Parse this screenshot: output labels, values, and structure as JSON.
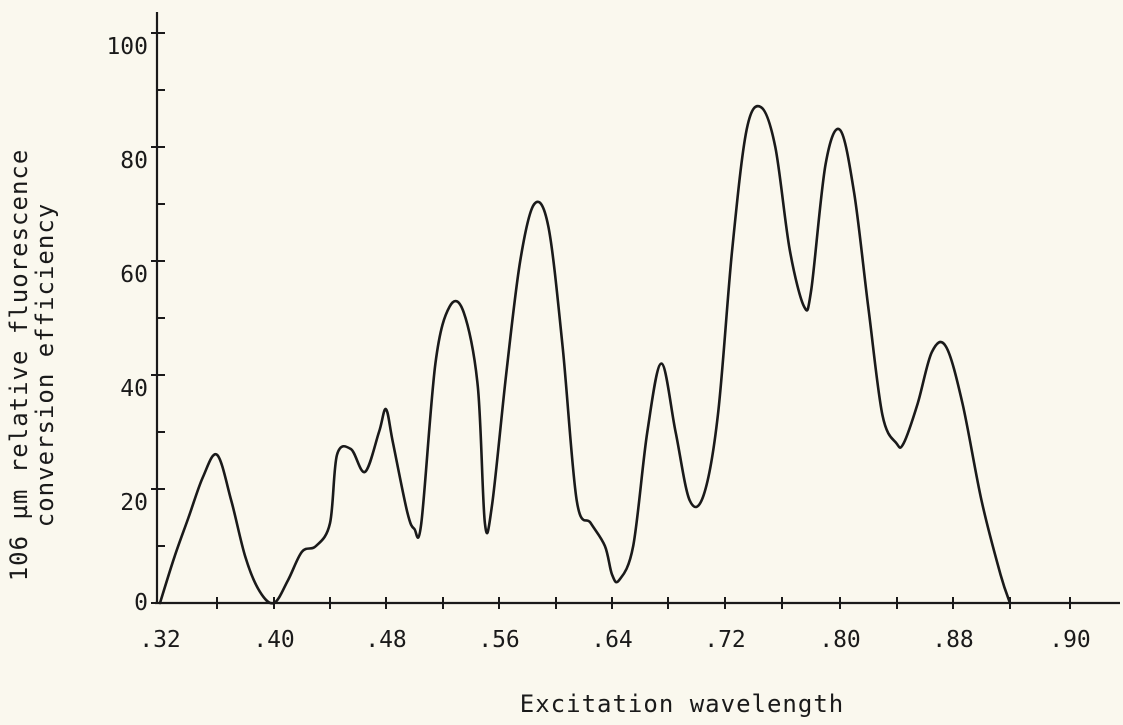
{
  "chart_data": {
    "type": "line",
    "title": "",
    "xlabel": "Excitation wavelength",
    "ylabel_line1": "106 µm relative fluorescence",
    "ylabel_line2": "conversion efficiency",
    "x_tick_labels": [
      ".32",
      ".40",
      ".48",
      ".56",
      ".64",
      ".72",
      ".80",
      ".88",
      ".90"
    ],
    "y_tick_labels": [
      "0",
      "20",
      "40",
      "60",
      "80",
      "100"
    ],
    "y_ticks": [
      0,
      20,
      40,
      60,
      80,
      100
    ],
    "ylim": [
      0,
      100
    ],
    "grid": false,
    "line_color": "#1a1a1a",
    "series": [
      {
        "x": [
          0.32,
          0.33,
          0.34,
          0.35,
          0.36,
          0.37,
          0.38,
          0.39,
          0.4,
          0.41,
          0.42,
          0.43,
          0.44,
          0.445,
          0.455,
          0.465,
          0.475,
          0.48,
          0.485,
          0.495,
          0.5,
          0.505,
          0.515,
          0.525,
          0.535,
          0.545,
          0.55,
          0.555,
          0.565,
          0.575,
          0.585,
          0.595,
          0.605,
          0.615,
          0.625,
          0.635,
          0.64,
          0.645,
          0.655,
          0.665,
          0.675,
          0.685,
          0.695,
          0.705,
          0.715,
          0.725,
          0.735,
          0.745,
          0.755,
          0.765,
          0.775,
          0.78,
          0.79,
          0.8,
          0.81,
          0.82,
          0.83,
          0.84,
          0.845,
          0.855,
          0.865,
          0.875,
          0.885,
          0.895,
          0.905,
          0.91
        ],
        "y": [
          0,
          8,
          15,
          22,
          26,
          18,
          8,
          2,
          0,
          4,
          9,
          10,
          14,
          26,
          27,
          23,
          30,
          34,
          28,
          16,
          13,
          14,
          42,
          52,
          51,
          38,
          14,
          17,
          40,
          60,
          70,
          66,
          45,
          18,
          14,
          10,
          5,
          4,
          10,
          30,
          42,
          30,
          18,
          19,
          33,
          62,
          83,
          87,
          80,
          62,
          52,
          55,
          77,
          83,
          72,
          52,
          33,
          28,
          28,
          35,
          44,
          45,
          35,
          18,
          5,
          0
        ]
      }
    ]
  }
}
